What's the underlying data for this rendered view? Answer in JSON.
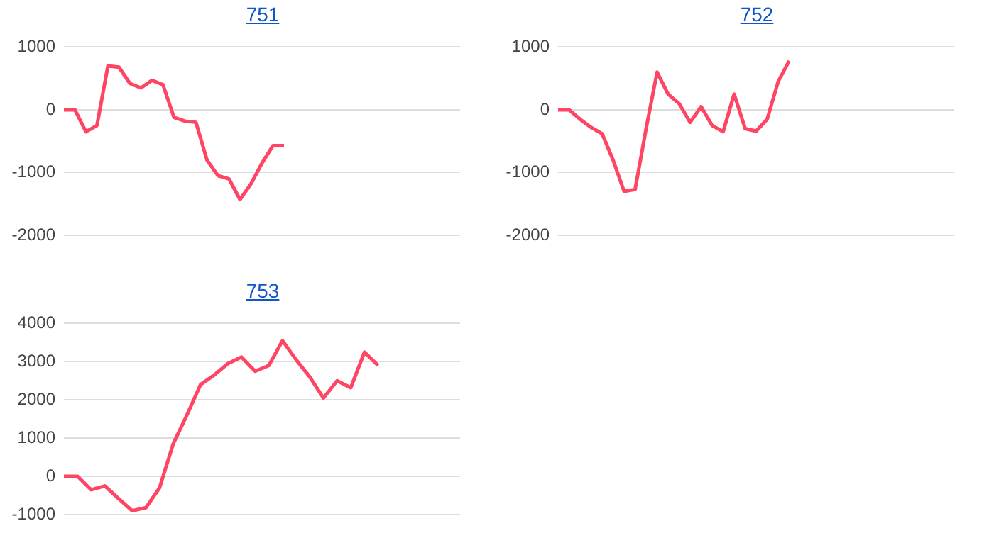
{
  "chart_data": [
    {
      "type": "line",
      "title": "751",
      "categories": [
        null,
        null,
        null,
        null,
        null,
        null,
        null,
        null,
        null,
        null,
        null,
        null,
        null,
        null,
        null,
        null,
        null,
        null,
        null,
        null,
        null,
        null,
        null,
        null,
        null,
        null,
        null,
        null,
        null,
        null,
        null,
        null,
        null,
        null,
        null,
        null,
        null
      ],
      "series": [
        {
          "color": "#ff4564",
          "values": [
            0,
            0,
            -350,
            -250,
            700,
            680,
            420,
            350,
            470,
            400,
            -120,
            -180,
            -200,
            -800,
            -1050,
            -1100,
            -1430,
            -1180,
            -850,
            -570,
            -570,
            null,
            null,
            null,
            null,
            null,
            null,
            null,
            null,
            null,
            null,
            null,
            null,
            null,
            null,
            null,
            null
          ]
        }
      ],
      "ylim": [
        -2000,
        1000
      ],
      "yticks": [
        -2000,
        -1000,
        0,
        1000
      ],
      "grid": "y",
      "tick_labels": "y",
      "marker": "none",
      "legend": false
    },
    {
      "type": "line",
      "title": "752",
      "categories": [
        null,
        null,
        null,
        null,
        null,
        null,
        null,
        null,
        null,
        null,
        null,
        null,
        null,
        null,
        null,
        null,
        null,
        null,
        null,
        null,
        null,
        null,
        null,
        null,
        null,
        null,
        null,
        null,
        null,
        null,
        null,
        null,
        null,
        null,
        null,
        null,
        null
      ],
      "series": [
        {
          "color": "#ff4564",
          "values": [
            0,
            0,
            -150,
            -280,
            -380,
            -800,
            -1300,
            -1270,
            -300,
            600,
            250,
            100,
            -200,
            50,
            -250,
            -350,
            250,
            -300,
            -340,
            -150,
            450,
            780,
            null,
            null,
            null,
            null,
            null,
            null,
            null,
            null,
            null,
            null,
            null,
            null,
            null,
            null,
            null
          ]
        }
      ],
      "ylim": [
        -2000,
        1000
      ],
      "yticks": [
        -2000,
        -1000,
        0,
        1000
      ],
      "grid": "y",
      "tick_labels": "y",
      "marker": "none",
      "legend": false
    },
    {
      "type": "line",
      "title": "753",
      "categories": [
        null,
        null,
        null,
        null,
        null,
        null,
        null,
        null,
        null,
        null,
        null,
        null,
        null,
        null,
        null,
        null,
        null,
        null,
        null,
        null,
        null,
        null,
        null,
        null,
        null,
        null,
        null,
        null,
        null,
        null
      ],
      "series": [
        {
          "color": "#ff4564",
          "values": [
            0,
            0,
            -350,
            -250,
            -580,
            -900,
            -820,
            -300,
            850,
            1600,
            2400,
            2650,
            2950,
            3120,
            2750,
            2900,
            3550,
            3050,
            2600,
            2050,
            2500,
            2320,
            3250,
            2900,
            null,
            null,
            null,
            null,
            null,
            null
          ]
        }
      ],
      "ylim": [
        -1000,
        4000
      ],
      "yticks": [
        -1000,
        0,
        1000,
        2000,
        3000,
        4000
      ],
      "grid": "y",
      "tick_labels": "y",
      "marker": "none",
      "legend": false
    }
  ]
}
